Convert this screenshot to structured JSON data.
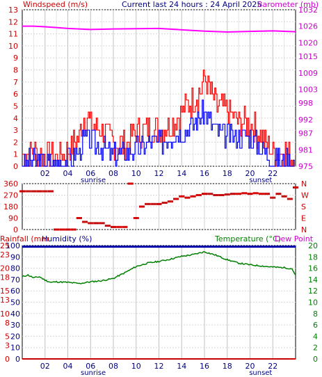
{
  "header": {
    "left_label": "Windspeed (m/s)",
    "title": "Current last 24 hours : 24 April 2025",
    "right_label": "Barometer (mb)"
  },
  "bottom_header": {
    "rainfall_label": "Rainfall (mm",
    "humidity_label": "Humidity (%)",
    "temperature_label": "Temperature (°C)",
    "dewpoint_label": "Dew Point"
  },
  "colors": {
    "windspeed_text": "#cc0000",
    "barometer_text": "#cc00cc",
    "title_text": "#000080",
    "gust": "#ff0000",
    "avg_wind": "#0000ff",
    "barometer": "#ff00ff",
    "direction": "#cc0000",
    "humidity": "#0000aa",
    "temperature": "#008000",
    "rainfall": "#cc0000",
    "dewpoint_text": "#cc00cc",
    "grid": "#c0c0c0"
  },
  "chart_data": [
    {
      "type": "line",
      "name": "wind_and_barometer",
      "x_ticks": [
        "02",
        "04",
        "06",
        "08",
        "10",
        "12",
        "14",
        "16",
        "18",
        "20",
        "22"
      ],
      "hour_annotations": [
        {
          "label": "sunrise",
          "hour": 5.5
        },
        {
          "label": "sunset",
          "hour": 20.2
        }
      ],
      "y_left": {
        "ticks": [
          0,
          1,
          2,
          3,
          4,
          5,
          6,
          7,
          8,
          9,
          10,
          11,
          12,
          13
        ],
        "lim": [
          0,
          13
        ]
      },
      "y_right": {
        "ticks": [
          975,
          981,
          987,
          992,
          998,
          1003,
          1009,
          1015,
          1020,
          1026,
          1032
        ],
        "lim": [
          975,
          1032
        ]
      },
      "series": [
        {
          "name": "Gust",
          "axis": "left",
          "hours": [
            0,
            1,
            2,
            3,
            4,
            5,
            5.5,
            6,
            7,
            8,
            9,
            10,
            11,
            12,
            13,
            14,
            15,
            15.5,
            16,
            17,
            18,
            19,
            20,
            21,
            22,
            23,
            24
          ],
          "values": [
            0.8,
            1.2,
            1,
            0.8,
            1.2,
            2.5,
            4.3,
            3.5,
            3,
            2,
            1.8,
            2.8,
            3,
            3,
            3.5,
            4.5,
            5.5,
            6,
            7.3,
            5,
            4.5,
            3.6,
            3.6,
            2.5,
            1.2,
            1.2,
            0.8
          ]
        },
        {
          "name": "Average",
          "axis": "left",
          "hours": [
            0,
            1,
            2,
            3,
            4,
            5,
            5.5,
            6,
            7,
            8,
            9,
            10,
            11,
            12,
            13,
            14,
            15,
            15.5,
            16,
            17,
            18,
            19,
            20,
            21,
            22,
            23,
            24
          ],
          "values": [
            0.2,
            0.5,
            0.3,
            0.2,
            0.5,
            1.2,
            2.5,
            2,
            1.5,
            1,
            1,
            1.5,
            2,
            2,
            2.5,
            3,
            3.5,
            4,
            4.5,
            3,
            2.5,
            2.5,
            2.5,
            1.5,
            0.5,
            0.5,
            0.2
          ]
        },
        {
          "name": "Barometer",
          "axis": "right",
          "hours": [
            0,
            1,
            2,
            3,
            4,
            5,
            6,
            8,
            10,
            12,
            14,
            16,
            18,
            20,
            22,
            24
          ],
          "values": [
            1026,
            1026,
            1025.8,
            1025.5,
            1025.2,
            1025,
            1024.8,
            1025,
            1025.1,
            1025.2,
            1024.7,
            1024.2,
            1023.9,
            1024.1,
            1024.3,
            1024
          ]
        }
      ]
    },
    {
      "type": "scatter",
      "name": "wind_direction",
      "y_ticks_left": [
        0,
        90,
        180,
        270,
        360
      ],
      "y_ticks_right": [
        "N",
        "E",
        "S",
        "W",
        "N"
      ],
      "ylim": [
        0,
        360
      ],
      "hours": [
        0,
        0.5,
        1,
        1.5,
        2,
        2.5,
        3,
        3.5,
        4,
        4.5,
        5,
        5.5,
        6,
        6.5,
        7,
        7.5,
        8,
        8.5,
        9,
        9.5,
        10,
        10.5,
        11,
        11.5,
        12,
        12.5,
        13,
        13.5,
        14,
        14.5,
        15,
        15.5,
        16,
        16.5,
        17,
        17.5,
        18,
        18.5,
        19,
        19.5,
        20,
        20.5,
        21,
        21.5,
        22,
        22.5,
        23,
        23.5,
        24
      ],
      "degrees": [
        300,
        300,
        300,
        300,
        300,
        300,
        0,
        0,
        0,
        0,
        90,
        60,
        50,
        50,
        50,
        30,
        20,
        20,
        20,
        360,
        90,
        180,
        200,
        200,
        200,
        210,
        220,
        240,
        260,
        250,
        260,
        270,
        280,
        280,
        270,
        270,
        275,
        280,
        280,
        285,
        280,
        285,
        280,
        280,
        250,
        280,
        260,
        240,
        330
      ]
    },
    {
      "type": "line",
      "name": "humidity_temperature",
      "x_ticks": [
        "02",
        "04",
        "06",
        "08",
        "10",
        "12",
        "14",
        "16",
        "18",
        "20",
        "22"
      ],
      "hour_annotations": [
        {
          "label": "sunrise",
          "hour": 5.5
        },
        {
          "label": "sunset",
          "hour": 20.2
        }
      ],
      "y_left_rain": {
        "ticks": [
          0,
          3,
          5,
          8,
          10,
          13,
          15,
          18,
          20,
          23,
          25
        ],
        "lim": [
          0,
          25
        ]
      },
      "y_left_humidity": {
        "ticks": [
          0,
          10,
          20,
          30,
          40,
          50,
          60,
          70,
          80,
          90,
          100
        ],
        "lim": [
          0,
          100
        ]
      },
      "y_right": {
        "ticks": [
          0,
          2,
          4,
          6,
          8,
          10,
          12,
          14,
          16,
          18,
          20
        ],
        "lim": [
          0,
          20
        ]
      },
      "series": [
        {
          "name": "Humidity",
          "axis": "left",
          "hours": [
            0,
            24
          ],
          "values": [
            99,
            99
          ]
        },
        {
          "name": "Rainfall",
          "axis": "left",
          "hours": [
            0,
            24
          ],
          "values": [
            0,
            0
          ]
        },
        {
          "name": "Temperature",
          "axis": "right",
          "hours": [
            0,
            0.5,
            1,
            1.5,
            2,
            2.5,
            3,
            4,
            5,
            6,
            7,
            8,
            9,
            10,
            11,
            12,
            13,
            14,
            15,
            16,
            17,
            18,
            19,
            20,
            21,
            22,
            23,
            23.7,
            24
          ],
          "values": [
            14.5,
            14.8,
            14.3,
            14.5,
            13.9,
            13.5,
            13.6,
            13.5,
            13.3,
            13.6,
            13.8,
            14.2,
            15.2,
            16.3,
            16.9,
            17.2,
            17.6,
            18.1,
            18.4,
            18.9,
            18.3,
            17.5,
            16.9,
            16.6,
            16.4,
            16.2,
            16.1,
            15.9,
            14.7
          ]
        }
      ]
    }
  ]
}
